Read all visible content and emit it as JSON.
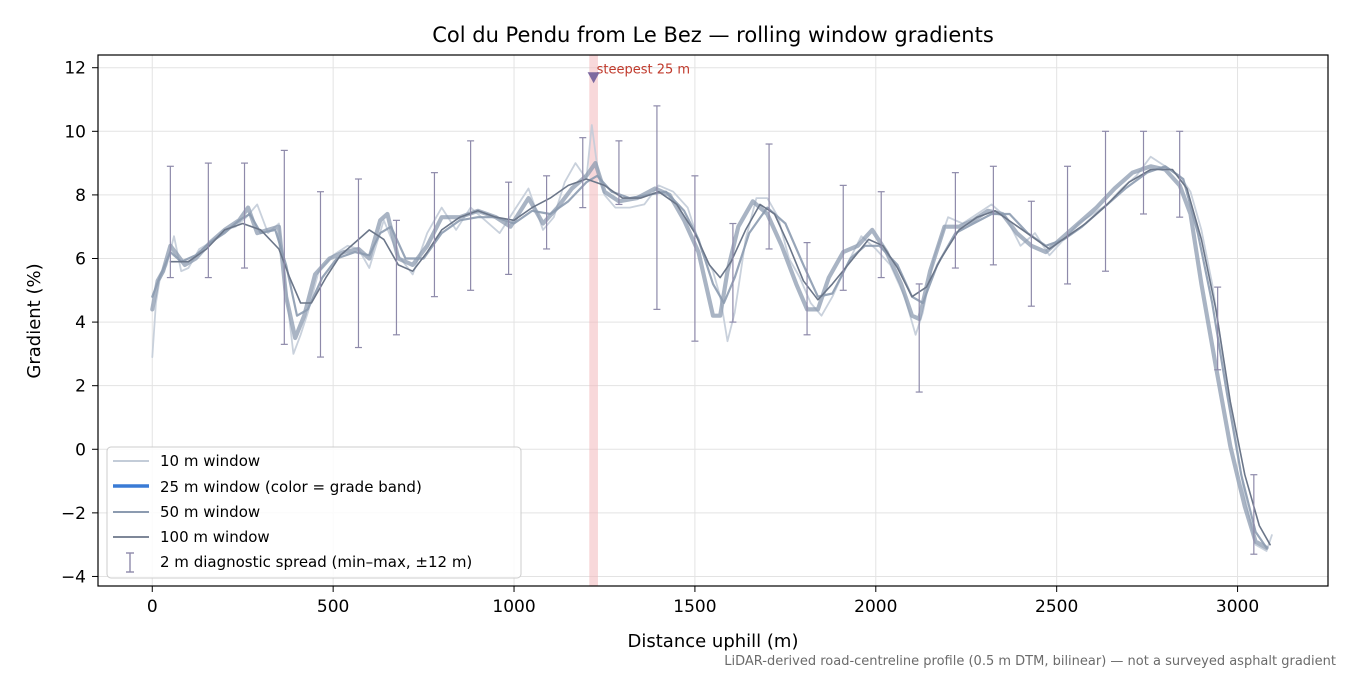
{
  "chart_data": {
    "type": "line",
    "title": "Col du Pendu from Le Bez — rolling window gradients",
    "xlabel": "Distance uphill (m)",
    "ylabel": "Gradient (%)",
    "xlim": [
      -150,
      3250
    ],
    "ylim": [
      -4.3,
      12.4
    ],
    "xticks": [
      0,
      500,
      1000,
      1500,
      2000,
      2500,
      3000
    ],
    "yticks": [
      -4,
      -2,
      0,
      2,
      4,
      6,
      8,
      10,
      12
    ],
    "ytick_labels": [
      "−4",
      "−2",
      "0",
      "2",
      "4",
      "6",
      "8",
      "10",
      "12"
    ],
    "grid": true,
    "legend_position": "lower-left",
    "colors": {
      "w10": "#c3ccd8",
      "w25": "#3a7bd5",
      "w50": "#8c9bb0",
      "w100": "#6b7689",
      "errorbar": "#8e8aaa",
      "highlight": "#f2b8bc",
      "marker": "#7d6aa0",
      "annotation": "#c0392b"
    },
    "series": [
      {
        "name": "10 m window",
        "x": [
          0,
          10,
          20,
          40,
          60,
          80,
          100,
          130,
          160,
          200,
          230,
          260,
          290,
          320,
          350,
          370,
          390,
          410,
          430,
          460,
          500,
          540,
          570,
          600,
          640,
          680,
          720,
          760,
          800,
          840,
          880,
          920,
          960,
          1000,
          1040,
          1080,
          1110,
          1140,
          1170,
          1200,
          1215,
          1230,
          1250,
          1280,
          1320,
          1360,
          1400,
          1440,
          1480,
          1520,
          1550,
          1570,
          1590,
          1610,
          1640,
          1670,
          1700,
          1730,
          1760,
          1790,
          1820,
          1850,
          1880,
          1920,
          1960,
          2000,
          2040,
          2080,
          2110,
          2130,
          2160,
          2200,
          2240,
          2280,
          2320,
          2360,
          2400,
          2440,
          2480,
          2520,
          2560,
          2600,
          2640,
          2680,
          2720,
          2760,
          2800,
          2840,
          2870,
          2900,
          2930,
          2960,
          2990,
          3020,
          3050,
          3080,
          3095
        ],
        "values": [
          2.9,
          4.6,
          5.3,
          5.8,
          6.7,
          5.6,
          5.7,
          6.3,
          6.5,
          6.9,
          7.0,
          7.3,
          7.7,
          6.8,
          7.1,
          5.0,
          3.0,
          3.6,
          4.3,
          5.6,
          6.1,
          6.4,
          6.3,
          5.7,
          7.2,
          6.1,
          5.5,
          6.8,
          7.6,
          6.9,
          7.6,
          7.2,
          6.8,
          7.5,
          8.2,
          6.9,
          7.3,
          8.4,
          9.0,
          8.5,
          10.2,
          8.9,
          8.0,
          7.6,
          7.6,
          7.7,
          8.3,
          8.1,
          7.6,
          6.2,
          5.6,
          4.8,
          3.4,
          4.3,
          6.6,
          7.9,
          7.9,
          7.3,
          6.0,
          5.4,
          4.6,
          4.2,
          4.8,
          5.8,
          6.7,
          6.3,
          5.8,
          4.8,
          3.6,
          4.3,
          6.0,
          7.3,
          7.1,
          7.4,
          7.7,
          7.3,
          6.4,
          6.8,
          6.1,
          6.6,
          7.1,
          7.4,
          7.7,
          8.2,
          8.6,
          9.2,
          8.9,
          8.6,
          8.1,
          6.9,
          5.2,
          2.9,
          0.7,
          -1.5,
          -3.0,
          -3.2,
          -2.7
        ]
      },
      {
        "name": "25 m window (color = grade band)",
        "x": [
          0,
          15,
          30,
          50,
          70,
          90,
          120,
          160,
          200,
          240,
          265,
          290,
          320,
          350,
          370,
          395,
          420,
          450,
          490,
          530,
          570,
          600,
          630,
          650,
          680,
          720,
          760,
          800,
          850,
          900,
          950,
          990,
          1040,
          1080,
          1120,
          1160,
          1200,
          1225,
          1250,
          1290,
          1340,
          1390,
          1430,
          1470,
          1510,
          1550,
          1570,
          1590,
          1620,
          1660,
          1700,
          1740,
          1780,
          1810,
          1840,
          1870,
          1910,
          1950,
          1990,
          2030,
          2070,
          2100,
          2120,
          2150,
          2190,
          2230,
          2270,
          2310,
          2350,
          2390,
          2430,
          2470,
          2510,
          2560,
          2610,
          2660,
          2710,
          2760,
          2800,
          2840,
          2870,
          2900,
          2940,
          2980,
          3020,
          3050,
          3080
        ],
        "values": [
          4.4,
          5.3,
          5.6,
          6.4,
          6.1,
          5.8,
          6.0,
          6.5,
          6.9,
          7.2,
          7.6,
          6.8,
          6.9,
          7.0,
          4.8,
          3.5,
          4.2,
          5.5,
          6.0,
          6.2,
          6.3,
          6.0,
          7.2,
          7.4,
          6.0,
          5.8,
          6.4,
          7.3,
          7.3,
          7.5,
          7.3,
          7.0,
          7.9,
          7.1,
          7.6,
          8.2,
          8.6,
          9.0,
          8.1,
          7.8,
          7.9,
          8.2,
          8.0,
          7.2,
          6.2,
          4.2,
          4.2,
          5.6,
          7.0,
          7.8,
          7.4,
          6.4,
          5.2,
          4.4,
          4.4,
          5.4,
          6.2,
          6.4,
          6.9,
          6.2,
          5.2,
          4.2,
          4.1,
          5.6,
          7.0,
          7.0,
          7.2,
          7.5,
          7.4,
          6.8,
          6.4,
          6.2,
          6.6,
          7.1,
          7.6,
          8.2,
          8.7,
          8.9,
          8.8,
          8.3,
          7.4,
          5.2,
          2.6,
          0.1,
          -1.8,
          -2.9,
          -3.1
        ]
      },
      {
        "name": "50 m window",
        "x": [
          0,
          20,
          50,
          80,
          120,
          160,
          200,
          240,
          270,
          300,
          340,
          370,
          400,
          430,
          470,
          510,
          560,
          600,
          630,
          660,
          700,
          750,
          800,
          850,
          900,
          950,
          1000,
          1050,
          1100,
          1150,
          1200,
          1230,
          1270,
          1320,
          1370,
          1420,
          1470,
          1510,
          1550,
          1580,
          1610,
          1650,
          1700,
          1750,
          1800,
          1840,
          1880,
          1930,
          1970,
          2010,
          2060,
          2100,
          2130,
          2170,
          2220,
          2270,
          2320,
          2370,
          2420,
          2470,
          2520,
          2570,
          2630,
          2690,
          2750,
          2800,
          2850,
          2890,
          2930,
          2970,
          3010,
          3050,
          3080
        ],
        "values": [
          4.8,
          5.4,
          6.2,
          5.9,
          6.1,
          6.5,
          6.8,
          7.2,
          7.4,
          6.8,
          6.9,
          5.8,
          4.2,
          4.4,
          5.4,
          6.0,
          6.2,
          6.1,
          6.8,
          7.0,
          6.0,
          6.0,
          6.8,
          7.2,
          7.3,
          7.3,
          7.1,
          7.5,
          7.4,
          7.8,
          8.4,
          8.6,
          8.1,
          7.9,
          8.0,
          8.1,
          7.5,
          6.6,
          5.2,
          4.6,
          5.4,
          6.8,
          7.6,
          7.1,
          5.8,
          4.8,
          4.9,
          6.0,
          6.4,
          6.4,
          5.8,
          4.8,
          4.6,
          5.8,
          6.8,
          7.1,
          7.4,
          7.4,
          6.8,
          6.4,
          6.6,
          7.0,
          7.6,
          8.2,
          8.7,
          8.9,
          8.5,
          6.8,
          4.6,
          1.8,
          -0.8,
          -2.6,
          -3.1
        ]
      },
      {
        "name": "100 m window",
        "x": [
          50,
          100,
          150,
          200,
          250,
          300,
          350,
          380,
          410,
          440,
          480,
          520,
          560,
          600,
          640,
          680,
          720,
          760,
          800,
          850,
          900,
          950,
          1000,
          1050,
          1100,
          1150,
          1200,
          1250,
          1300,
          1350,
          1400,
          1450,
          1500,
          1540,
          1570,
          1600,
          1640,
          1680,
          1720,
          1760,
          1800,
          1840,
          1880,
          1930,
          1980,
          2020,
          2060,
          2100,
          2140,
          2180,
          2230,
          2280,
          2330,
          2380,
          2430,
          2480,
          2530,
          2580,
          2640,
          2700,
          2760,
          2820,
          2860,
          2900,
          2940,
          2980,
          3020,
          3060,
          3090
        ],
        "values": [
          5.9,
          5.9,
          6.3,
          6.9,
          7.1,
          6.9,
          6.3,
          5.4,
          4.6,
          4.6,
          5.4,
          6.1,
          6.5,
          6.9,
          6.6,
          5.8,
          5.6,
          6.2,
          6.9,
          7.3,
          7.5,
          7.3,
          7.2,
          7.6,
          7.9,
          8.3,
          8.5,
          8.3,
          7.9,
          7.9,
          8.1,
          7.7,
          6.8,
          5.8,
          5.4,
          5.9,
          6.9,
          7.7,
          7.4,
          6.4,
          5.3,
          4.7,
          5.2,
          5.9,
          6.6,
          6.4,
          5.7,
          4.8,
          5.1,
          6.0,
          6.9,
          7.3,
          7.5,
          7.1,
          6.7,
          6.3,
          6.7,
          7.1,
          7.7,
          8.4,
          8.8,
          8.8,
          8.2,
          6.6,
          4.4,
          1.5,
          -0.8,
          -2.4,
          -3.0
        ]
      }
    ],
    "errorbars": {
      "name": "2 m diagnostic spread (min–max, ±12 m)",
      "x": [
        50,
        155,
        255,
        365,
        465,
        570,
        675,
        780,
        880,
        985,
        1090,
        1190,
        1290,
        1395,
        1500,
        1605,
        1705,
        1810,
        1910,
        2015,
        2120,
        2220,
        2325,
        2430,
        2530,
        2635,
        2740,
        2840,
        2945,
        3045
      ],
      "low": [
        5.4,
        5.4,
        5.7,
        3.3,
        2.9,
        3.2,
        3.6,
        4.8,
        5.0,
        5.5,
        6.3,
        7.6,
        7.7,
        4.4,
        3.4,
        4.0,
        6.3,
        3.6,
        5.0,
        5.4,
        1.8,
        5.7,
        5.8,
        4.5,
        5.2,
        5.6,
        7.4,
        7.3,
        2.5,
        -3.3
      ],
      "high": [
        8.9,
        9.0,
        9.0,
        9.4,
        8.1,
        8.5,
        7.2,
        8.7,
        9.7,
        8.4,
        8.6,
        9.8,
        9.7,
        10.8,
        8.6,
        7.1,
        9.6,
        6.5,
        8.3,
        8.1,
        5.2,
        8.7,
        8.9,
        7.8,
        8.9,
        10.0,
        10.0,
        10.0,
        5.1,
        -0.8
      ]
    },
    "highlight": {
      "x_start": 1208,
      "x_end": 1232,
      "peak_x": 1220,
      "peak_y": 11.7,
      "label": "steepest 25 m"
    },
    "legend": [
      {
        "label": "10 m window"
      },
      {
        "label": "25 m window (color = grade band)"
      },
      {
        "label": "50 m window"
      },
      {
        "label": "100 m window"
      },
      {
        "label": "2 m diagnostic spread (min–max, ±12 m)"
      }
    ],
    "footnote": "LiDAR-derived road-centreline profile (0.5 m DTM, bilinear) — not a surveyed asphalt gradient"
  }
}
